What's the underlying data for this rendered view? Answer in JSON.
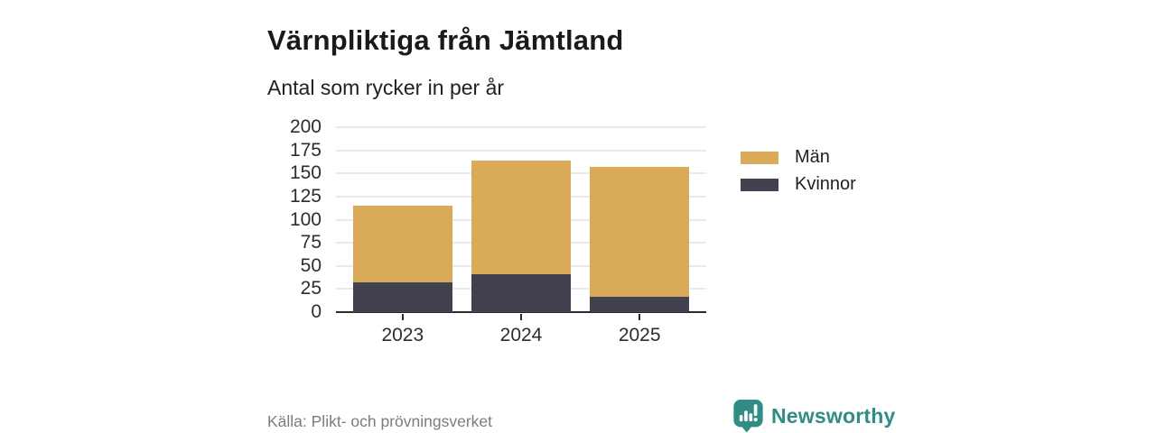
{
  "header": {
    "title": "Värnpliktiga från Jämtland",
    "subtitle": "Antal som rycker in per år"
  },
  "footer": {
    "source": "Källa: Plikt- och prövningsverket",
    "brand": "Newsworthy"
  },
  "colors": {
    "men": "#d9ab58",
    "women": "#414150",
    "brand_teal": "#318c86",
    "axis": "#2b2b35",
    "grid": "#e9e9e9",
    "text_dark": "#1a1a1a",
    "text_muted": "#7c7c7c"
  },
  "chart_data": {
    "type": "bar",
    "stacked": true,
    "title": "Värnpliktiga från Jämtland",
    "subtitle": "Antal som rycker in per år",
    "categories": [
      "2023",
      "2024",
      "2025"
    ],
    "series": [
      {
        "name": "Män",
        "color": "#d9ab58",
        "values": [
          83,
          123,
          140
        ]
      },
      {
        "name": "Kvinnor",
        "color": "#414150",
        "values": [
          32,
          41,
          17
        ]
      }
    ],
    "stack_order_bottom_to_top": [
      "Kvinnor",
      "Män"
    ],
    "totals": [
      115,
      164,
      157
    ],
    "xlabel": "",
    "ylabel": "",
    "ylim": [
      0,
      200
    ],
    "yticks": [
      0,
      25,
      50,
      75,
      100,
      125,
      150,
      175,
      200
    ],
    "grid": true,
    "legend": [
      "Män",
      "Kvinnor"
    ],
    "legend_position": "right",
    "source": "Källa: Plikt- och prövningsverket"
  }
}
